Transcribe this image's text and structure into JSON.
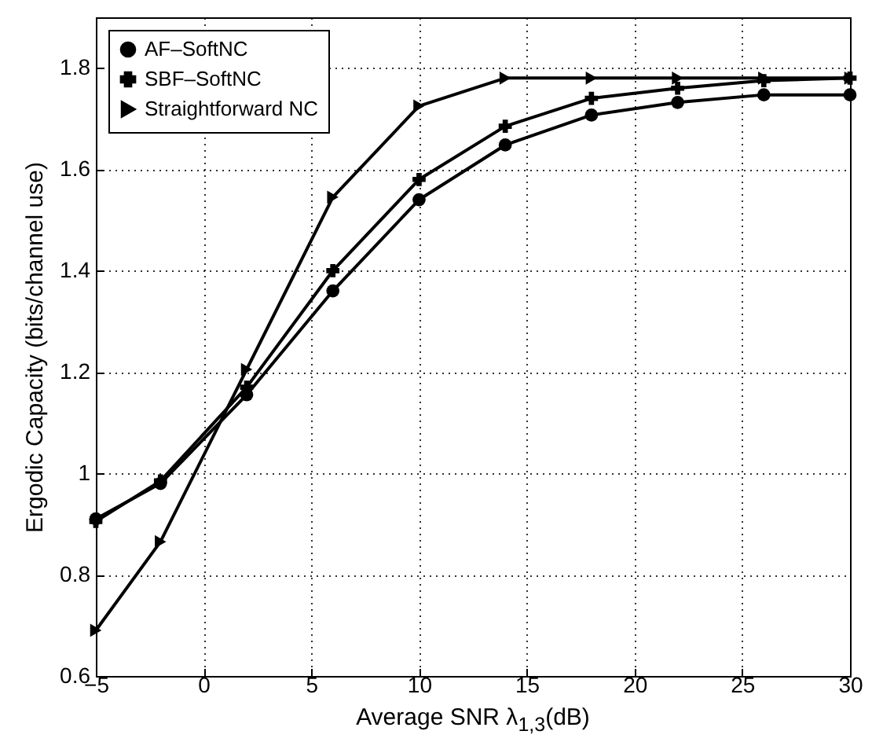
{
  "chart_data": {
    "type": "line",
    "xlabel": "Average SNR λ$_{1,3}$(dB)",
    "ylabel": "Ergodic Capacity (bits/channel use)",
    "x": [
      -5,
      -2,
      2,
      6,
      10,
      14,
      18,
      22,
      26,
      30
    ],
    "series": [
      {
        "name": "AF–SoftNC",
        "color": "#000000",
        "marker": "circle",
        "values": [
          0.91,
          0.98,
          1.155,
          1.36,
          1.54,
          1.648,
          1.707,
          1.732,
          1.747,
          1.747
        ]
      },
      {
        "name": "SBF–SoftNC",
        "color": "#000000",
        "marker": "cross",
        "values": [
          0.905,
          0.985,
          1.17,
          1.4,
          1.58,
          1.685,
          1.74,
          1.76,
          1.775,
          1.78
        ]
      },
      {
        "name": "Straightforward NC",
        "color": "#000000",
        "marker": "triangle",
        "values": [
          0.69,
          0.865,
          1.205,
          1.545,
          1.725,
          1.78,
          1.78,
          1.78,
          1.78,
          1.78
        ]
      }
    ],
    "xlim": [
      -5,
      30
    ],
    "xticks": [
      -5,
      0,
      5,
      10,
      15,
      20,
      25,
      30
    ],
    "ylim": [
      0.6,
      1.9
    ],
    "yticks": [
      0.6,
      0.8,
      1,
      1.2,
      1.4,
      1.6,
      1.8
    ],
    "grid": true,
    "legend": "top left",
    "line_style": "solid"
  }
}
